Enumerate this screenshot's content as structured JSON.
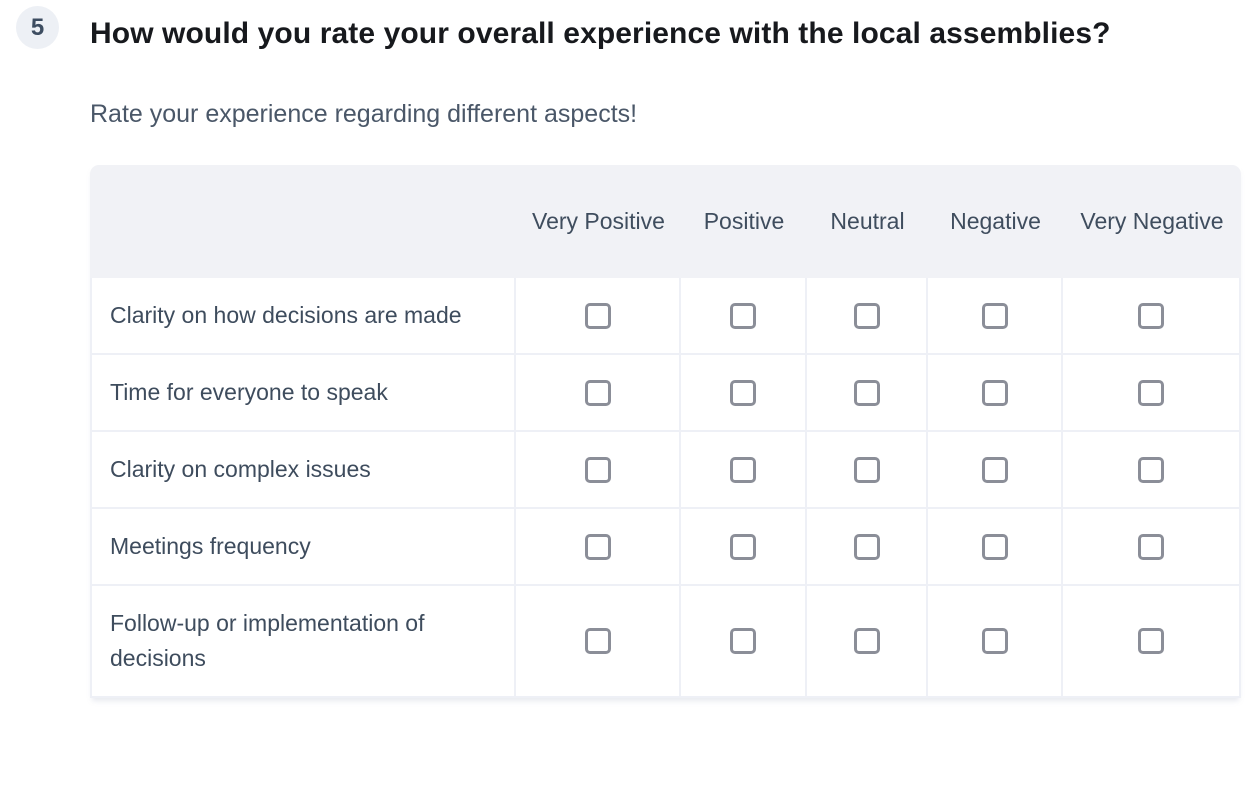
{
  "question": {
    "number": "5",
    "title": "How would you rate your overall experience with the local assemblies?",
    "subtitle": "Rate your experience regarding different aspects!"
  },
  "matrix": {
    "columns": [
      "Very Positive",
      "Positive",
      "Neutral",
      "Negative",
      "Very Negative"
    ],
    "rows": [
      "Clarity on how decisions are made",
      "Time for everyone to speak",
      "Clarity on complex issues",
      "Meetings frequency",
      "Follow-up or implementation of decisions"
    ],
    "checkbox_state": "unchecked"
  },
  "colors": {
    "header_bg": "#f1f2f6",
    "grid_border": "#eef0f6",
    "checkbox_border": "#8b8e98",
    "title_text": "#17191d",
    "slate_text": "#3f4d5e",
    "badge_bg": "#edf0f5"
  }
}
